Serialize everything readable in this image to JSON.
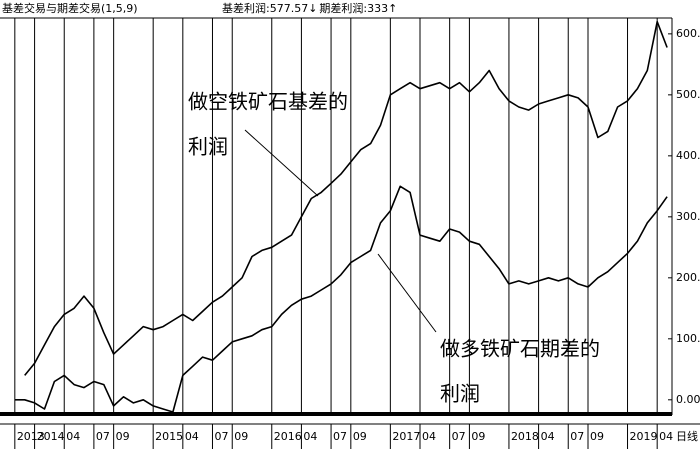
{
  "chart_data": {
    "type": "line",
    "title": "基差交易与期差交易(1,5,9)",
    "x": [
      10,
      11,
      12,
      13,
      14,
      15,
      16,
      17,
      18,
      19,
      20,
      21,
      22,
      23,
      24,
      25,
      26,
      27,
      28,
      29,
      30,
      31,
      32,
      33,
      34,
      35,
      36,
      37,
      38,
      39,
      40,
      41,
      42,
      43,
      44,
      45,
      46,
      47,
      48,
      49,
      50,
      51,
      52,
      53,
      54,
      55,
      56,
      57,
      58,
      59,
      60,
      61,
      62,
      63,
      64,
      65,
      66,
      67,
      68,
      69,
      70,
      71,
      72,
      73,
      74,
      75,
      76
    ],
    "series": [
      {
        "name": "基差利润",
        "last_label": ":577.57↓",
        "color": "#000000",
        "values": [
          null,
          40,
          60,
          90,
          120,
          140,
          150,
          170,
          150,
          110,
          75,
          90,
          105,
          120,
          115,
          120,
          130,
          140,
          130,
          145,
          160,
          170,
          185,
          200,
          235,
          245,
          250,
          260,
          270,
          300,
          330,
          340,
          355,
          370,
          390,
          410,
          420,
          450,
          500,
          510,
          520,
          510,
          515,
          520,
          510,
          520,
          505,
          520,
          540,
          510,
          490,
          480,
          475,
          485,
          490,
          495,
          500,
          495,
          480,
          430,
          440,
          480,
          490,
          510,
          540,
          620,
          577.57
        ]
      },
      {
        "name": "期差利润",
        "last_label": ":333↑",
        "color": "#000000",
        "values": [
          0,
          0,
          -5,
          -15,
          30,
          40,
          25,
          20,
          30,
          25,
          -10,
          5,
          -5,
          0,
          -10,
          -15,
          -20,
          40,
          55,
          70,
          65,
          80,
          95,
          100,
          105,
          115,
          120,
          140,
          155,
          165,
          170,
          180,
          190,
          205,
          225,
          235,
          245,
          290,
          310,
          350,
          340,
          270,
          265,
          260,
          280,
          275,
          260,
          255,
          235,
          215,
          190,
          195,
          190,
          195,
          200,
          195,
          200,
          190,
          185,
          200,
          210,
          225,
          240,
          260,
          290,
          310,
          333
        ]
      }
    ],
    "xlim": [
      8.5,
      76.5
    ],
    "xticks": [
      {
        "value": 10,
        "label": "2013"
      },
      {
        "value": 12,
        "label": "2014"
      },
      {
        "value": 15,
        "label": "04"
      },
      {
        "value": 18,
        "label": "07"
      },
      {
        "value": 20,
        "label": "09"
      },
      {
        "value": 24,
        "label": "2015"
      },
      {
        "value": 27,
        "label": "04"
      },
      {
        "value": 30,
        "label": "07"
      },
      {
        "value": 32,
        "label": "09"
      },
      {
        "value": 36,
        "label": "2016"
      },
      {
        "value": 39,
        "label": "04"
      },
      {
        "value": 42,
        "label": "07"
      },
      {
        "value": 44,
        "label": "09"
      },
      {
        "value": 48,
        "label": "2017"
      },
      {
        "value": 51,
        "label": "04"
      },
      {
        "value": 54,
        "label": "07"
      },
      {
        "value": 56,
        "label": "09"
      },
      {
        "value": 60,
        "label": "2018"
      },
      {
        "value": 63,
        "label": "04"
      },
      {
        "value": 66,
        "label": "07"
      },
      {
        "value": 68,
        "label": "09"
      },
      {
        "value": 72,
        "label": "2019"
      },
      {
        "value": 75,
        "label": "04"
      }
    ],
    "ylim": [
      -20,
      626
    ],
    "yticks": [
      {
        "value": 0,
        "label": "0.00"
      },
      {
        "value": 100,
        "label": "100.00"
      },
      {
        "value": 200,
        "label": "200.00"
      },
      {
        "value": 300,
        "label": "300.00"
      },
      {
        "value": 400,
        "label": "400.00"
      },
      {
        "value": 500,
        "label": "500.00"
      },
      {
        "value": 600,
        "label": "600.00"
      }
    ],
    "period_label": "日线",
    "annotations": [
      {
        "lines": [
          "做空铁矿石基差的",
          "利润"
        ]
      },
      {
        "lines": [
          "做多铁矿石期差的",
          "利润"
        ]
      }
    ]
  }
}
